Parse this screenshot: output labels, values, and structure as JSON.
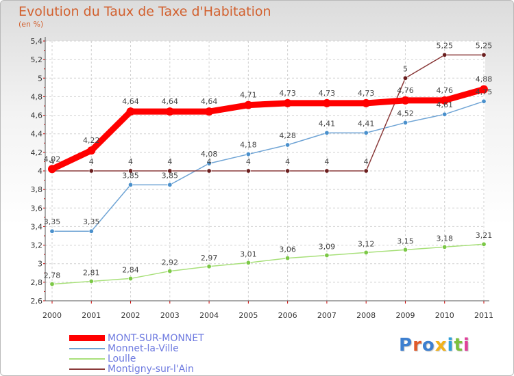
{
  "chart_data": {
    "type": "line",
    "title": "Evolution du Taux de Taxe d'Habitation",
    "subtitle": "(en %)",
    "categories": [
      "2000",
      "2001",
      "2002",
      "2003",
      "2004",
      "2005",
      "2006",
      "2007",
      "2008",
      "2009",
      "2010",
      "2011"
    ],
    "ylim": [
      2.6,
      5.4
    ],
    "yticks": [
      "2,6",
      "2,8",
      "3",
      "3,2",
      "3,4",
      "3,6",
      "3,8",
      "4",
      "4,2",
      "4,4",
      "4,6",
      "4,8",
      "5",
      "5,2",
      "5,4"
    ],
    "series": [
      {
        "name": "MONT-SUR-MONNET",
        "color": "#ff0000",
        "dot": "#ff0000",
        "values": [
          4.02,
          4.22,
          4.64,
          4.64,
          4.64,
          4.71,
          4.73,
          4.73,
          4.73,
          4.76,
          4.76,
          4.88
        ],
        "labels": [
          "4,02",
          "4,22",
          "4,64",
          "4,64",
          "4,64",
          "4,71",
          "4,73",
          "4,73",
          "4,73",
          "4,76",
          "4,76",
          "4,88"
        ]
      },
      {
        "name": "Monnet-la-Ville",
        "color": "#6fa4d5",
        "dot": "#4a90cc",
        "values": [
          3.35,
          3.35,
          3.85,
          3.85,
          4.08,
          4.18,
          4.28,
          4.41,
          4.41,
          4.52,
          4.61,
          4.75
        ],
        "labels": [
          "3,35",
          "3,35",
          "3,85",
          "3,85",
          "4,08",
          "4,18",
          "4,28",
          "4,41",
          "4,41",
          "4,52",
          "4,61",
          "4,75"
        ]
      },
      {
        "name": "Loulle",
        "color": "#a8e07a",
        "dot": "#7cc847",
        "values": [
          2.78,
          2.81,
          2.84,
          2.92,
          2.97,
          3.01,
          3.06,
          3.09,
          3.12,
          3.15,
          3.18,
          3.21
        ],
        "labels": [
          "2,78",
          "2,81",
          "2,84",
          "2,92",
          "2,97",
          "3,01",
          "3,06",
          "3,09",
          "3,12",
          "3,15",
          "3,18",
          "3,21"
        ]
      },
      {
        "name": "Montigny-sur-l'Ain",
        "color": "#8a3a3a",
        "dot": "#6b1f1f",
        "values": [
          4,
          4,
          4,
          4,
          4,
          4,
          4,
          4,
          4,
          5,
          5.25,
          5.25
        ],
        "labels": [
          "4",
          "4",
          "4",
          "4",
          "4",
          "4",
          "4",
          "4",
          "4",
          "5",
          "5,25",
          "5,25"
        ]
      }
    ]
  },
  "logo": {
    "text": "Proxiti"
  }
}
